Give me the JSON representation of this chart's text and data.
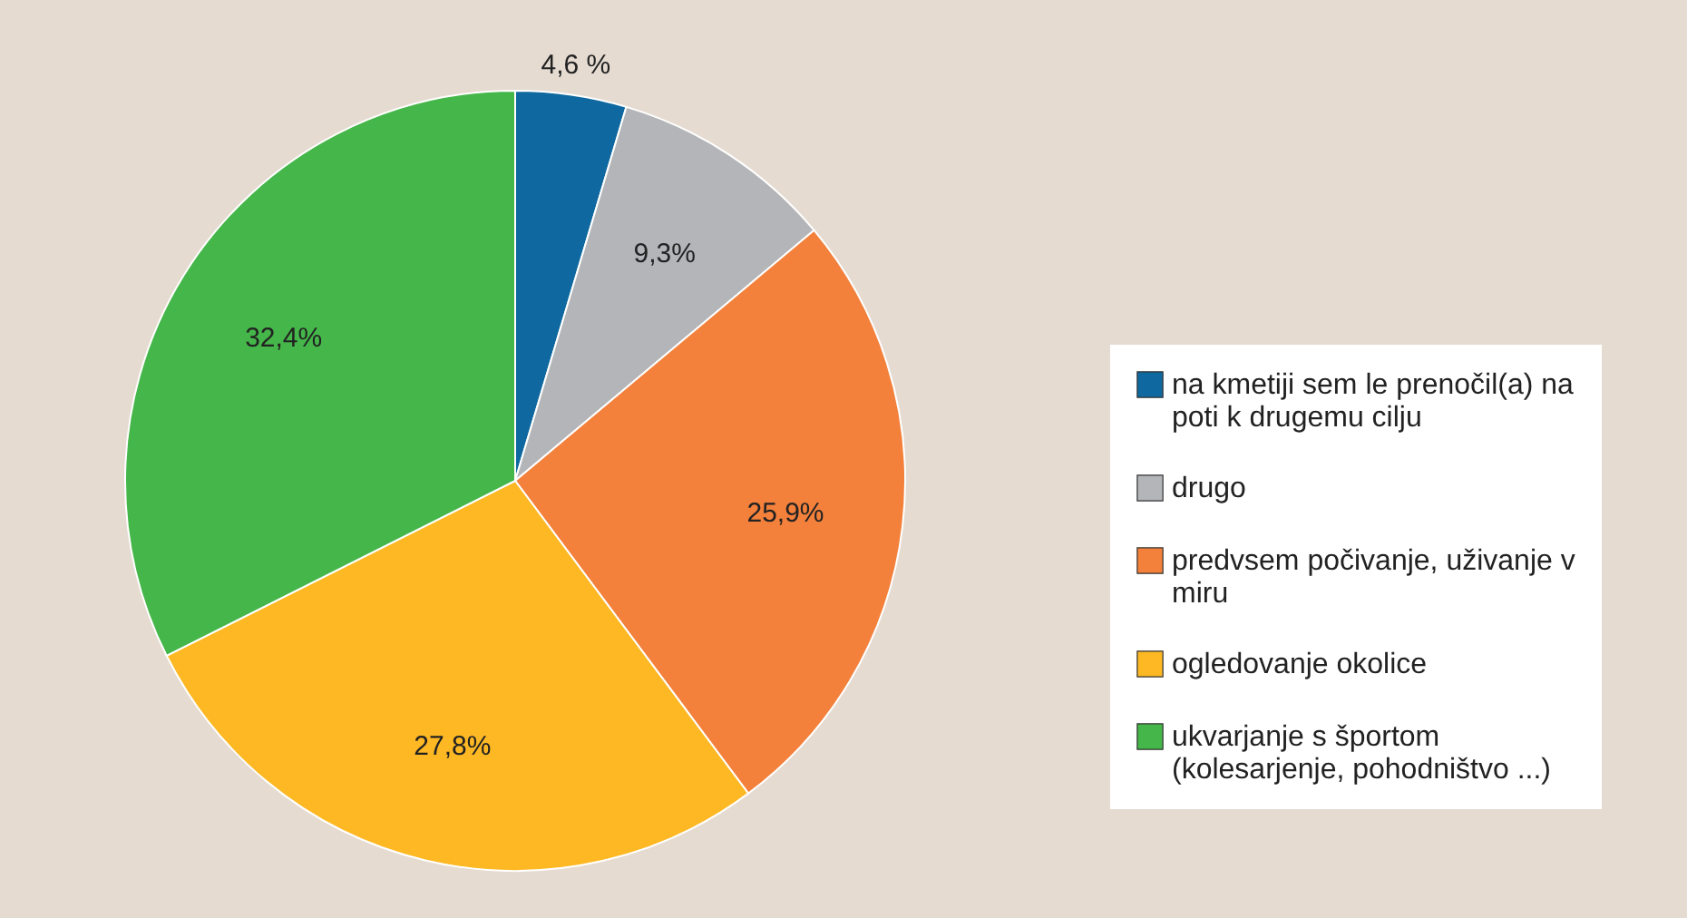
{
  "chart_data": {
    "type": "pie",
    "categories": [
      "na kmetiji sem le prenočil(a) na poti k drugemu cilju",
      "drugo",
      "predvsem počivanje, uživanje v miru",
      "ogledovanje okolice",
      "ukvarjanje s športom (kolesarjenje, pohodništvo ...)"
    ],
    "values": [
      4.6,
      9.3,
      25.9,
      27.8,
      32.4
    ],
    "colors": [
      "#0f69a0",
      "#b3b5b8",
      "#f3813c",
      "#fdb824",
      "#45b649"
    ],
    "value_labels": [
      "4,6 %",
      "9,3%",
      "25,9%",
      "27,8%",
      "32,4%"
    ],
    "legend": "right"
  }
}
